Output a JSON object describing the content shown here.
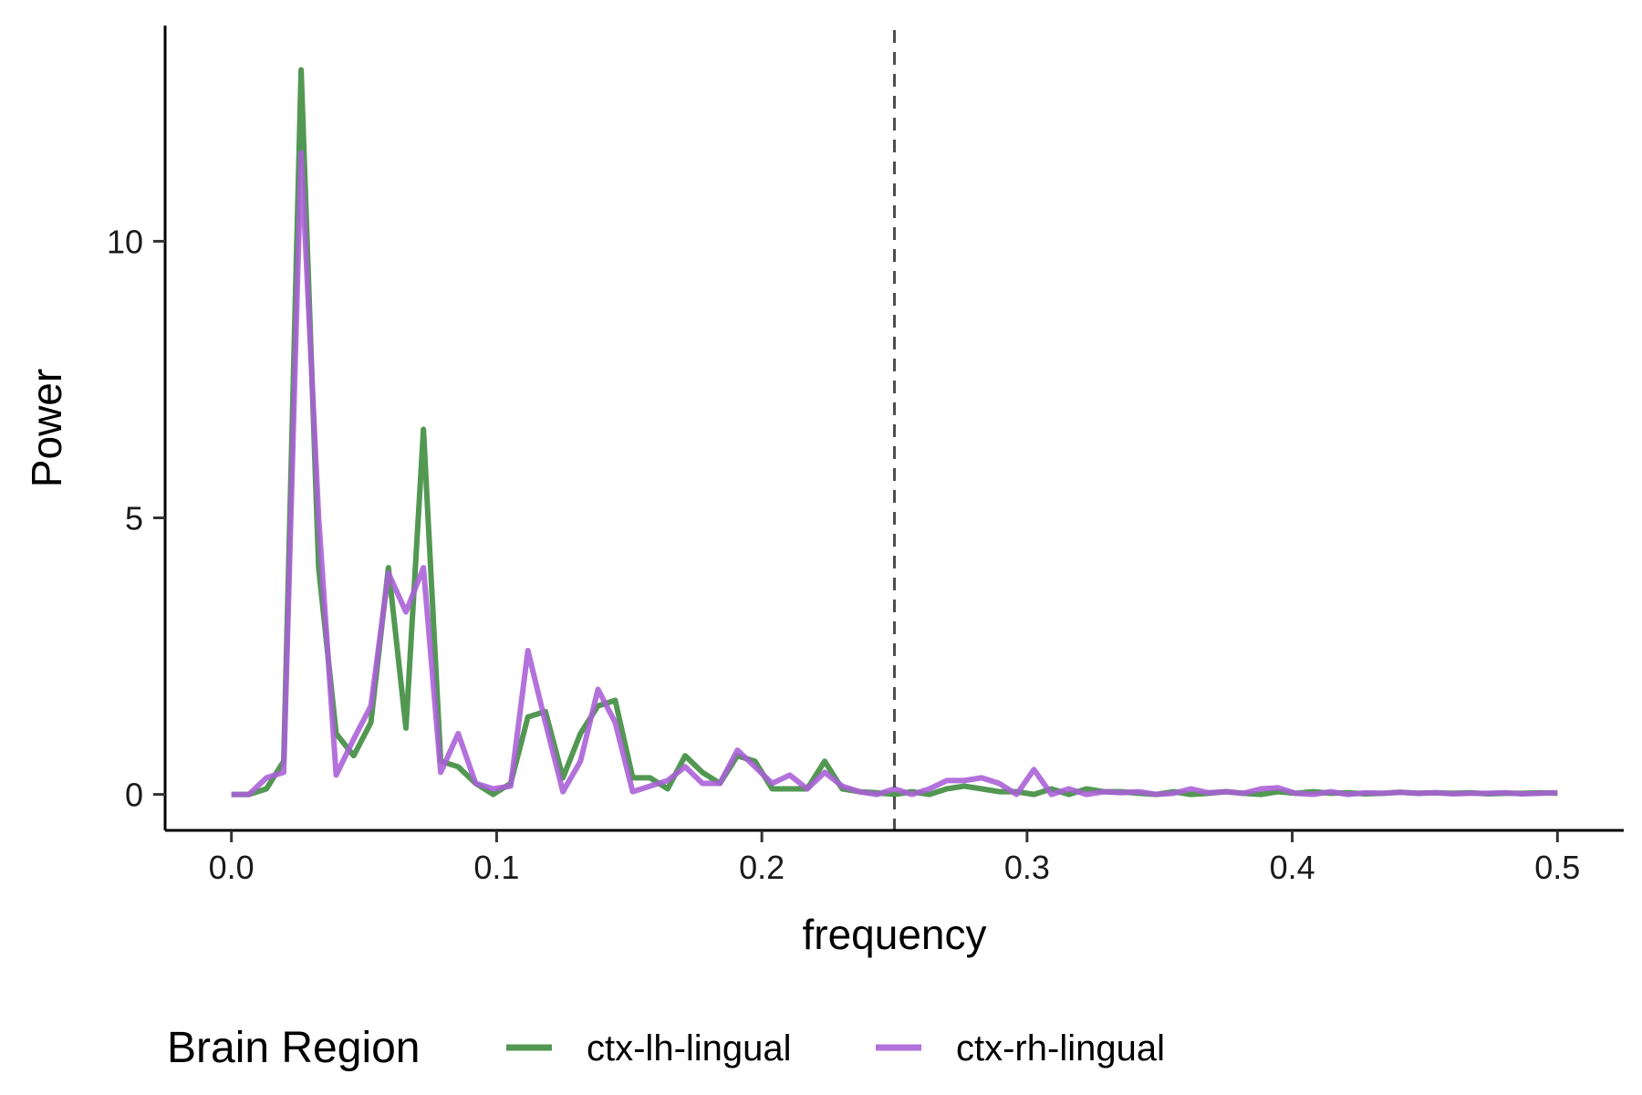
{
  "chart_data": {
    "type": "line",
    "xlabel": "frequency",
    "ylabel": "Power",
    "xlim": [
      -0.025,
      0.525
    ],
    "ylim": [
      -0.65,
      13.9
    ],
    "x_ticks": [
      0.0,
      0.1,
      0.2,
      0.3,
      0.4,
      0.5
    ],
    "x_tick_labels": [
      "0.0",
      "0.1",
      "0.2",
      "0.3",
      "0.4",
      "0.5"
    ],
    "y_ticks": [
      0,
      5,
      10
    ],
    "y_tick_labels": [
      "0",
      "5",
      "10"
    ],
    "grid": false,
    "legend": {
      "title": "Brain Region",
      "position": "bottom"
    },
    "reference_line": {
      "axis": "x",
      "value": 0.25,
      "style": "dashed",
      "color": "#4d4d4d"
    },
    "x": [
      0.0,
      0.0066,
      0.0132,
      0.0197,
      0.0263,
      0.0329,
      0.0395,
      0.0461,
      0.0526,
      0.0592,
      0.0658,
      0.0724,
      0.0789,
      0.0855,
      0.0921,
      0.0987,
      0.1053,
      0.1118,
      0.1184,
      0.125,
      0.1316,
      0.1382,
      0.1447,
      0.1513,
      0.1579,
      0.1645,
      0.1711,
      0.1776,
      0.1842,
      0.1908,
      0.1974,
      0.2039,
      0.2105,
      0.2171,
      0.2237,
      0.2303,
      0.2368,
      0.2434,
      0.25,
      0.2566,
      0.2632,
      0.2697,
      0.2763,
      0.2829,
      0.2895,
      0.2961,
      0.3026,
      0.3092,
      0.3158,
      0.3224,
      0.3289,
      0.3355,
      0.3421,
      0.3487,
      0.3553,
      0.3618,
      0.3684,
      0.375,
      0.3816,
      0.3882,
      0.3947,
      0.4013,
      0.4079,
      0.4145,
      0.4211,
      0.4276,
      0.4342,
      0.4408,
      0.4474,
      0.4539,
      0.4605,
      0.4671,
      0.4737,
      0.4803,
      0.4868,
      0.4934,
      0.5
    ],
    "series": [
      {
        "name": "ctx-lh-lingual",
        "color": "#3a8a3a",
        "values": [
          0.0,
          0.0,
          0.1,
          0.6,
          13.1,
          4.1,
          1.1,
          0.7,
          1.3,
          4.1,
          1.2,
          6.6,
          0.6,
          0.5,
          0.2,
          0.0,
          0.2,
          1.4,
          1.5,
          0.3,
          1.1,
          1.6,
          1.7,
          0.3,
          0.3,
          0.1,
          0.7,
          0.4,
          0.2,
          0.7,
          0.6,
          0.1,
          0.1,
          0.1,
          0.6,
          0.1,
          0.05,
          0.03,
          0.0,
          0.05,
          0.0,
          0.1,
          0.15,
          0.1,
          0.05,
          0.05,
          0.0,
          0.1,
          0.0,
          0.1,
          0.05,
          0.05,
          0.02,
          0.0,
          0.05,
          0.0,
          0.02,
          0.05,
          0.02,
          0.0,
          0.05,
          0.02,
          0.05,
          0.02,
          0.03,
          0.01,
          0.02,
          0.04,
          0.02,
          0.03,
          0.02,
          0.03,
          0.01,
          0.02,
          0.02,
          0.03,
          0.02
        ]
      },
      {
        "name": "ctx-rh-lingual",
        "color": "#a95fd6",
        "values": [
          0.0,
          0.0,
          0.3,
          0.4,
          11.6,
          5.0,
          0.35,
          1.0,
          1.6,
          4.0,
          3.3,
          4.1,
          0.4,
          1.1,
          0.2,
          0.1,
          0.15,
          2.6,
          1.3,
          0.05,
          0.6,
          1.9,
          1.3,
          0.05,
          0.15,
          0.25,
          0.5,
          0.2,
          0.2,
          0.8,
          0.5,
          0.2,
          0.35,
          0.1,
          0.4,
          0.15,
          0.05,
          0.0,
          0.1,
          0.0,
          0.1,
          0.25,
          0.25,
          0.3,
          0.2,
          0.0,
          0.45,
          0.0,
          0.1,
          0.0,
          0.05,
          0.03,
          0.05,
          0.0,
          0.02,
          0.1,
          0.03,
          0.05,
          0.02,
          0.1,
          0.12,
          0.02,
          0.0,
          0.05,
          0.0,
          0.03,
          0.02,
          0.04,
          0.02,
          0.03,
          0.01,
          0.02,
          0.02,
          0.03,
          0.01,
          0.02,
          0.03
        ]
      }
    ]
  }
}
